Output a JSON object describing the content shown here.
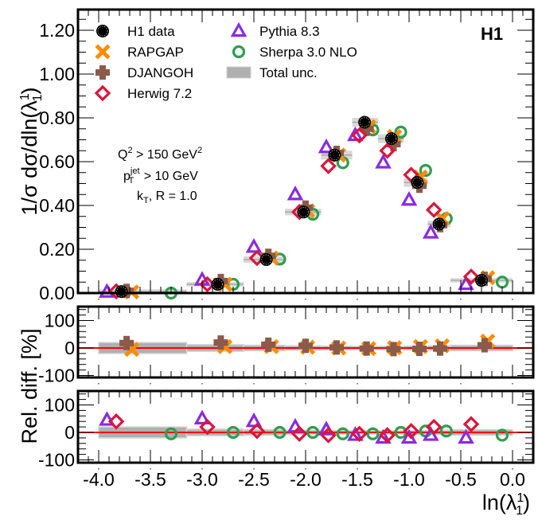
{
  "chart_data": {
    "type": "scatter",
    "title": "",
    "experiment_label": "H1",
    "xlabel": "ln(λ₁¹)",
    "xlabel_parts": {
      "base": "ln(λ",
      "sup": "1",
      "sub": "1",
      "close": ")"
    },
    "ylabel_main": "1/σ dσ/dln(λ₁¹)",
    "ylabel_main_parts": {
      "base": "1/σ dσ/dln(λ",
      "sup": "1",
      "sub": "1",
      "close": ")"
    },
    "ylabel_ratio": "Rel. diff. [%]",
    "xlim": [
      -4.3,
      0.2
    ],
    "ylim_main": [
      0.0,
      1.3
    ],
    "ylim_ratio": [
      -105,
      145
    ],
    "x_ticks": [
      "-4.0",
      "-3.5",
      "-3.0",
      "-2.5",
      "-2.0",
      "-1.5",
      "-1.0",
      "-0.5",
      "0.0"
    ],
    "x_tick_values": [
      -4.0,
      -3.5,
      -3.0,
      -2.5,
      -2.0,
      -1.5,
      -1.0,
      -0.5,
      0.0
    ],
    "y_ticks_main": [
      "0.00",
      "0.20",
      "0.40",
      "0.60",
      "0.80",
      "1.00",
      "1.20"
    ],
    "y_tick_values_main": [
      0.0,
      0.2,
      0.4,
      0.6,
      0.8,
      1.0,
      1.2
    ],
    "y_ticks_ratio": [
      "-100",
      "0",
      "100"
    ],
    "y_tick_values_ratio": [
      -100,
      0,
      100
    ],
    "annotations": [
      {
        "text": "Q² > 150 GeV²",
        "base": "Q",
        "sup": "2",
        "rest": " > 150 GeV",
        "sup2": "2"
      },
      {
        "text": "pT^jet > 10 GeV",
        "base": "p",
        "sub": "T",
        "sup": "jet",
        "rest": " > 10 GeV"
      },
      {
        "text": "kT, R = 1.0",
        "base": "k",
        "sub": "T",
        "rest": ", R = 1.0"
      }
    ],
    "legend": {
      "placement": "top-left",
      "entries": [
        {
          "name": "H1 data",
          "marker": "filled-circle",
          "color": "#000000"
        },
        {
          "name": "RAPGAP",
          "marker": "x-cross",
          "color": "#ff8c00"
        },
        {
          "name": "DJANGOH",
          "marker": "plus",
          "color": "#8b5a4a"
        },
        {
          "name": "Herwig 7.2",
          "marker": "open-diamond",
          "color": "#dc143c"
        },
        {
          "name": "Pythia 8.3",
          "marker": "open-triangle",
          "color": "#8a2be2"
        },
        {
          "name": "Sherpa 3.0 NLO",
          "marker": "open-circle",
          "color": "#2e9e4f"
        },
        {
          "name": "Total unc.",
          "marker": "box",
          "color": "#b0b0b0"
        }
      ]
    },
    "bins": [
      {
        "lo": -4.0,
        "hi": -3.15
      },
      {
        "lo": -3.15,
        "hi": -2.6
      },
      {
        "lo": -2.6,
        "hi": -2.2
      },
      {
        "lo": -2.2,
        "hi": -1.85
      },
      {
        "lo": -1.85,
        "hi": -1.55
      },
      {
        "lo": -1.55,
        "hi": -1.3
      },
      {
        "lo": -1.3,
        "hi": -1.05
      },
      {
        "lo": -1.05,
        "hi": -0.82
      },
      {
        "lo": -0.82,
        "hi": -0.6
      },
      {
        "lo": -0.6,
        "hi": 0.0
      }
    ],
    "series": [
      {
        "name": "H1 data",
        "x": [
          -3.78,
          -2.85,
          -2.38,
          -2.02,
          -1.72,
          -1.43,
          -1.17,
          -0.92,
          -0.71,
          -0.3
        ],
        "y": [
          0.007,
          0.04,
          0.153,
          0.37,
          0.63,
          0.78,
          0.705,
          0.505,
          0.315,
          0.058
        ],
        "unc": [
          0.01,
          0.01,
          0.015,
          0.015,
          0.02,
          0.02,
          0.02,
          0.02,
          0.015,
          0.01
        ]
      },
      {
        "name": "RAPGAP",
        "x": [
          -3.68,
          -2.78,
          -2.33,
          -1.98,
          -1.68,
          -1.39,
          -1.14,
          -0.89,
          -0.68,
          -0.24
        ],
        "y": [
          0.005,
          0.04,
          0.16,
          0.375,
          0.63,
          0.76,
          0.715,
          0.53,
          0.34,
          0.07
        ],
        "rel": [
          -5,
          5,
          5,
          3,
          0,
          -2,
          1,
          5,
          8,
          25
        ]
      },
      {
        "name": "DJANGOH",
        "x": [
          -3.73,
          -2.82,
          -2.36,
          -2.0,
          -1.7,
          -1.41,
          -1.15,
          -0.9,
          -0.7,
          -0.27
        ],
        "y": [
          0.01,
          0.055,
          0.17,
          0.39,
          0.64,
          0.75,
          0.68,
          0.49,
          0.31,
          0.065
        ],
        "rel": [
          18,
          20,
          12,
          8,
          2,
          -2,
          -4,
          -3,
          -2,
          10
        ]
      },
      {
        "name": "Herwig 7.2",
        "x": [
          -3.83,
          -2.95,
          -2.47,
          -2.06,
          -1.78,
          -1.48,
          -1.21,
          -0.98,
          -0.76,
          -0.4
        ],
        "y": [
          0.008,
          0.04,
          0.16,
          0.37,
          0.58,
          0.72,
          0.65,
          0.54,
          0.38,
          0.075
        ],
        "rel": [
          40,
          20,
          5,
          -5,
          -10,
          -5,
          -10,
          5,
          20,
          30
        ]
      },
      {
        "name": "Pythia 8.3",
        "x": [
          -3.92,
          -3.0,
          -2.5,
          -2.1,
          -1.8,
          -1.52,
          -1.25,
          -1.0,
          -0.79,
          -0.45
        ],
        "y": [
          0.005,
          0.06,
          0.21,
          0.45,
          0.665,
          0.72,
          0.595,
          0.425,
          0.275,
          0.04
        ],
        "rel": [
          45,
          50,
          40,
          20,
          10,
          -10,
          -20,
          -20,
          -10,
          -20
        ]
      },
      {
        "name": "Sherpa 3.0 NLO",
        "x": [
          -3.3,
          -2.7,
          -2.25,
          -1.93,
          -1.64,
          -1.35,
          -1.08,
          -0.84,
          -0.64,
          -0.1
        ],
        "y": [
          0.0,
          0.04,
          0.155,
          0.36,
          0.595,
          0.745,
          0.735,
          0.56,
          0.34,
          0.05
        ],
        "rel": [
          -5,
          0,
          0,
          0,
          -5,
          -5,
          0,
          5,
          5,
          -10
        ]
      }
    ],
    "ratio_unc": [
      20,
      12,
      10,
      8,
      7,
      6,
      6,
      7,
      8,
      10
    ]
  }
}
